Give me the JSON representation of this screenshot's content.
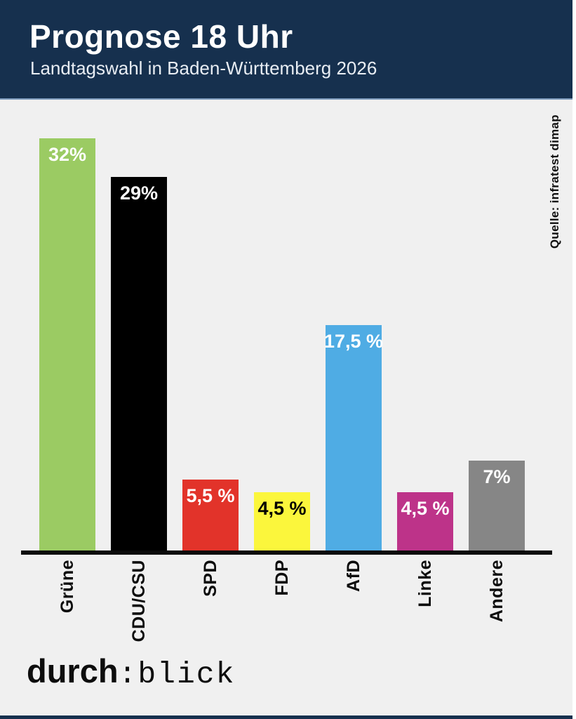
{
  "header": {
    "title": "Prognose 18 Uhr",
    "subtitle": "Landtagswahl in Baden-Württemberg 2026",
    "background_color": "#16304e",
    "border_color": "#7e9cbd",
    "text_color": "#ffffff"
  },
  "chart_data": {
    "type": "bar",
    "title": "Prognose 18 Uhr",
    "subtitle": "Landtagswahl in Baden-Württemberg 2026",
    "source": "Quelle: infratest dimap",
    "categories": [
      "Grüne",
      "CDU/CSU",
      "SPD",
      "FDP",
      "AfD",
      "Linke",
      "Andere"
    ],
    "values": [
      32,
      29,
      5.5,
      4.5,
      17.5,
      4.5,
      7
    ],
    "value_labels": [
      "32%",
      "29%",
      "5,5 %",
      "4,5 %",
      "17,5 %",
      "4,5 %",
      "7%"
    ],
    "colors": [
      "#9bcb63",
      "#000000",
      "#e2332a",
      "#fbf63c",
      "#4face4",
      "#bd3389",
      "#868686"
    ],
    "value_label_colors": [
      "#ffffff",
      "#ffffff",
      "#ffffff",
      "#000000",
      "#ffffff",
      "#ffffff",
      "#ffffff"
    ],
    "unit": "percent",
    "xlabel": "",
    "ylabel": "",
    "ylim": [
      0,
      35
    ],
    "grid": false,
    "legend": "none",
    "background_color": "#f0f0f0",
    "axis_color": "#0b0b0b"
  },
  "footer": {
    "logo_bold": "durch",
    "logo_mono": ":blick"
  }
}
